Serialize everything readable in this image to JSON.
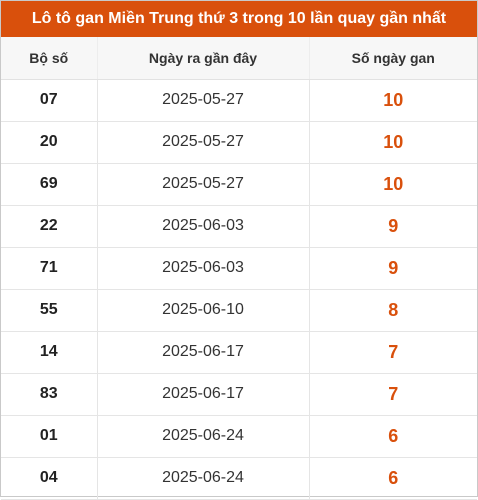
{
  "title": "Lô tô gan Miền Trung thứ 3 trong 10 lần quay gần nhất",
  "headers": [
    "Bộ số",
    "Ngày ra gần đây",
    "Số ngày gan"
  ],
  "accent_color": "#d9500c",
  "rows": [
    {
      "num": "07",
      "date": "2025-05-27",
      "days": "10"
    },
    {
      "num": "20",
      "date": "2025-05-27",
      "days": "10"
    },
    {
      "num": "69",
      "date": "2025-05-27",
      "days": "10"
    },
    {
      "num": "22",
      "date": "2025-06-03",
      "days": "9"
    },
    {
      "num": "71",
      "date": "2025-06-03",
      "days": "9"
    },
    {
      "num": "55",
      "date": "2025-06-10",
      "days": "8"
    },
    {
      "num": "14",
      "date": "2025-06-17",
      "days": "7"
    },
    {
      "num": "83",
      "date": "2025-06-17",
      "days": "7"
    },
    {
      "num": "01",
      "date": "2025-06-24",
      "days": "6"
    },
    {
      "num": "04",
      "date": "2025-06-24",
      "days": "6"
    }
  ]
}
